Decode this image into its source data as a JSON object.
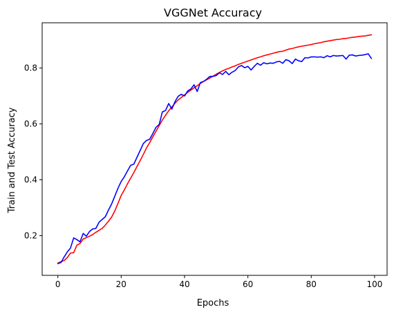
{
  "chart_data": {
    "type": "line",
    "title": "VGGNet Accuracy",
    "xlabel": "Epochs",
    "ylabel": "Train and Test Accuracy",
    "xlim": [
      -4.95,
      103.95
    ],
    "ylim": [
      0.058,
      0.962
    ],
    "xticks": [
      0,
      20,
      40,
      60,
      80,
      100
    ],
    "yticks": [
      0.2,
      0.4,
      0.6,
      0.8
    ],
    "xtick_labels": [
      "0",
      "20",
      "40",
      "60",
      "80",
      "100"
    ],
    "ytick_labels": [
      "0.2",
      "0.4",
      "0.6",
      "0.8"
    ],
    "grid": false,
    "legend": "none",
    "series": [
      {
        "color": "#ff0000",
        "x": [
          0,
          1,
          2,
          3,
          4,
          5,
          6,
          7,
          8,
          9,
          10,
          11,
          12,
          13,
          14,
          15,
          16,
          17,
          18,
          19,
          20,
          21,
          22,
          23,
          24,
          25,
          26,
          27,
          28,
          29,
          30,
          31,
          32,
          33,
          34,
          35,
          36,
          37,
          38,
          39,
          40,
          41,
          42,
          43,
          44,
          45,
          46,
          47,
          48,
          49,
          50,
          51,
          52,
          53,
          54,
          55,
          56,
          57,
          58,
          59,
          60,
          61,
          62,
          63,
          64,
          65,
          66,
          67,
          68,
          69,
          70,
          71,
          72,
          73,
          74,
          75,
          76,
          77,
          78,
          79,
          80,
          81,
          82,
          83,
          84,
          85,
          86,
          87,
          88,
          89,
          90,
          91,
          92,
          93,
          94,
          95,
          96,
          97,
          98,
          99
        ],
        "values": [
          0.102,
          0.107,
          0.111,
          0.122,
          0.138,
          0.139,
          0.166,
          0.172,
          0.188,
          0.193,
          0.198,
          0.204,
          0.212,
          0.219,
          0.226,
          0.238,
          0.252,
          0.267,
          0.289,
          0.316,
          0.344,
          0.364,
          0.386,
          0.406,
          0.426,
          0.448,
          0.469,
          0.491,
          0.514,
          0.533,
          0.554,
          0.574,
          0.594,
          0.614,
          0.631,
          0.647,
          0.661,
          0.674,
          0.686,
          0.695,
          0.704,
          0.713,
          0.721,
          0.729,
          0.737,
          0.745,
          0.752,
          0.758,
          0.764,
          0.771,
          0.778,
          0.784,
          0.79,
          0.795,
          0.799,
          0.804,
          0.808,
          0.813,
          0.817,
          0.821,
          0.825,
          0.829,
          0.833,
          0.837,
          0.84,
          0.844,
          0.847,
          0.85,
          0.853,
          0.856,
          0.859,
          0.86,
          0.864,
          0.868,
          0.87,
          0.873,
          0.876,
          0.878,
          0.88,
          0.882,
          0.884,
          0.887,
          0.889,
          0.891,
          0.894,
          0.896,
          0.898,
          0.9,
          0.902,
          0.903,
          0.905,
          0.906,
          0.908,
          0.91,
          0.911,
          0.913,
          0.914,
          0.915,
          0.917,
          0.919
        ]
      },
      {
        "color": "#0000ff",
        "x": [
          0,
          1,
          2,
          3,
          4,
          5,
          6,
          7,
          8,
          9,
          10,
          11,
          12,
          13,
          14,
          15,
          16,
          17,
          18,
          19,
          20,
          21,
          22,
          23,
          24,
          25,
          26,
          27,
          28,
          29,
          30,
          31,
          32,
          33,
          34,
          35,
          36,
          37,
          38,
          39,
          40,
          41,
          42,
          43,
          44,
          45,
          46,
          47,
          48,
          49,
          50,
          51,
          52,
          53,
          54,
          55,
          56,
          57,
          58,
          59,
          60,
          61,
          62,
          63,
          64,
          65,
          66,
          67,
          68,
          69,
          70,
          71,
          72,
          73,
          74,
          75,
          76,
          77,
          78,
          79,
          80,
          81,
          82,
          83,
          84,
          85,
          86,
          87,
          88,
          89,
          90,
          91,
          92,
          93,
          94,
          95,
          96,
          97,
          98,
          99
        ],
        "values": [
          0.1,
          0.104,
          0.124,
          0.142,
          0.156,
          0.192,
          0.186,
          0.178,
          0.208,
          0.198,
          0.215,
          0.224,
          0.226,
          0.248,
          0.258,
          0.268,
          0.292,
          0.314,
          0.342,
          0.37,
          0.394,
          0.411,
          0.432,
          0.452,
          0.456,
          0.481,
          0.505,
          0.53,
          0.541,
          0.545,
          0.566,
          0.588,
          0.598,
          0.643,
          0.648,
          0.673,
          0.653,
          0.68,
          0.699,
          0.706,
          0.7,
          0.718,
          0.725,
          0.74,
          0.716,
          0.748,
          0.752,
          0.76,
          0.77,
          0.77,
          0.773,
          0.783,
          0.777,
          0.788,
          0.776,
          0.785,
          0.791,
          0.804,
          0.809,
          0.801,
          0.806,
          0.793,
          0.806,
          0.817,
          0.81,
          0.819,
          0.815,
          0.818,
          0.817,
          0.822,
          0.824,
          0.817,
          0.83,
          0.826,
          0.816,
          0.832,
          0.826,
          0.823,
          0.837,
          0.836,
          0.84,
          0.84,
          0.839,
          0.84,
          0.837,
          0.844,
          0.84,
          0.845,
          0.843,
          0.844,
          0.845,
          0.832,
          0.846,
          0.847,
          0.843,
          0.845,
          0.846,
          0.848,
          0.851,
          0.834
        ]
      }
    ]
  }
}
